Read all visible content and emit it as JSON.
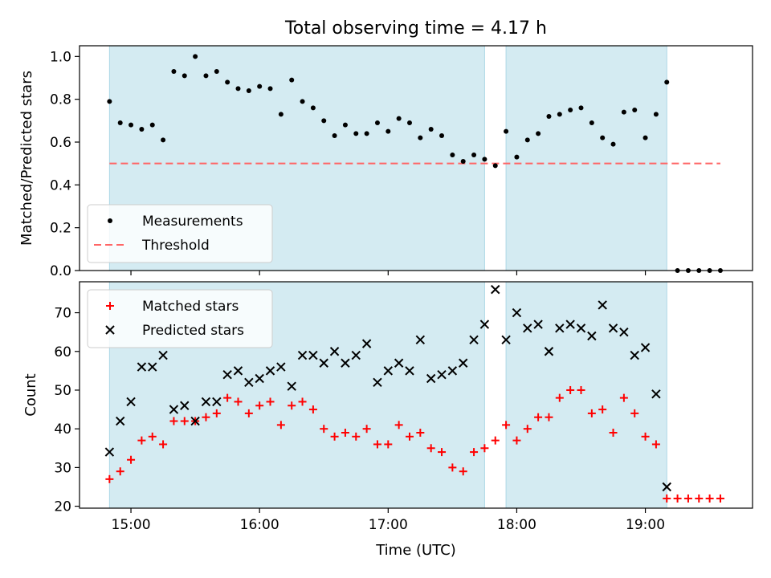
{
  "title": "Total observing time = 4.17 h",
  "xlabel": "Time (UTC)",
  "colors": {
    "shade": "#add8e6",
    "threshold": "#ff6666",
    "matched": "#ff0000",
    "predicted": "#000000",
    "measure": "#000000"
  },
  "chart_data": [
    {
      "type": "scatter",
      "panel": "top",
      "ylabel": "Matched/Predicted stars",
      "ylim": [
        0.0,
        1.05
      ],
      "yticks": [
        "0.0",
        "0.2",
        "0.4",
        "0.6",
        "0.8",
        "1.0"
      ],
      "xlim": [
        "14:36",
        "19:50"
      ],
      "shaded_intervals": [
        [
          "14:50",
          "17:45"
        ],
        [
          "17:55",
          "19:10"
        ]
      ],
      "legend": {
        "placement": "lower-left",
        "entries": [
          "Measurements",
          "Threshold"
        ]
      },
      "threshold": {
        "name": "Threshold",
        "value": 0.5,
        "x_range": [
          "14:50",
          "19:35"
        ],
        "style": "dashed"
      },
      "series": [
        {
          "name": "Measurements",
          "marker": "dot",
          "points": [
            [
              "14:50",
              0.79
            ],
            [
              "14:55",
              0.69
            ],
            [
              "15:00",
              0.68
            ],
            [
              "15:05",
              0.66
            ],
            [
              "15:10",
              0.68
            ],
            [
              "15:15",
              0.61
            ],
            [
              "15:20",
              0.93
            ],
            [
              "15:25",
              0.91
            ],
            [
              "15:30",
              1.0
            ],
            [
              "15:35",
              0.91
            ],
            [
              "15:40",
              0.93
            ],
            [
              "15:45",
              0.88
            ],
            [
              "15:50",
              0.85
            ],
            [
              "15:55",
              0.84
            ],
            [
              "16:00",
              0.86
            ],
            [
              "16:05",
              0.85
            ],
            [
              "16:10",
              0.73
            ],
            [
              "16:15",
              0.89
            ],
            [
              "16:20",
              0.79
            ],
            [
              "16:25",
              0.76
            ],
            [
              "16:30",
              0.7
            ],
            [
              "16:35",
              0.63
            ],
            [
              "16:40",
              0.68
            ],
            [
              "16:45",
              0.64
            ],
            [
              "16:50",
              0.64
            ],
            [
              "16:55",
              0.69
            ],
            [
              "17:00",
              0.65
            ],
            [
              "17:05",
              0.71
            ],
            [
              "17:10",
              0.69
            ],
            [
              "17:15",
              0.62
            ],
            [
              "17:20",
              0.66
            ],
            [
              "17:25",
              0.63
            ],
            [
              "17:30",
              0.54
            ],
            [
              "17:35",
              0.51
            ],
            [
              "17:40",
              0.54
            ],
            [
              "17:45",
              0.52
            ],
            [
              "17:50",
              0.49
            ],
            [
              "17:55",
              0.65
            ],
            [
              "18:00",
              0.53
            ],
            [
              "18:05",
              0.61
            ],
            [
              "18:10",
              0.64
            ],
            [
              "18:15",
              0.72
            ],
            [
              "18:20",
              0.73
            ],
            [
              "18:25",
              0.75
            ],
            [
              "18:30",
              0.76
            ],
            [
              "18:35",
              0.69
            ],
            [
              "18:40",
              0.62
            ],
            [
              "18:45",
              0.59
            ],
            [
              "18:50",
              0.74
            ],
            [
              "18:55",
              0.75
            ],
            [
              "19:00",
              0.62
            ],
            [
              "19:05",
              0.73
            ],
            [
              "19:10",
              0.88
            ],
            [
              "19:15",
              0.0
            ],
            [
              "19:20",
              0.0
            ],
            [
              "19:25",
              0.0
            ],
            [
              "19:30",
              0.0
            ],
            [
              "19:35",
              0.0
            ]
          ]
        }
      ]
    },
    {
      "type": "scatter",
      "panel": "bottom",
      "ylabel": "Count",
      "ylim": [
        19.5,
        78
      ],
      "yticks": [
        "20",
        "30",
        "40",
        "50",
        "60",
        "70"
      ],
      "xlim": [
        "14:36",
        "19:50"
      ],
      "xticks": [
        "15:00",
        "16:00",
        "17:00",
        "18:00",
        "19:00"
      ],
      "shaded_intervals": [
        [
          "14:50",
          "17:45"
        ],
        [
          "17:55",
          "19:10"
        ]
      ],
      "legend": {
        "placement": "top-left",
        "entries": [
          "Matched stars",
          "Predicted stars"
        ]
      },
      "series": [
        {
          "name": "Matched stars",
          "marker": "plus",
          "points": [
            [
              "14:50",
              27
            ],
            [
              "14:55",
              29
            ],
            [
              "15:00",
              32
            ],
            [
              "15:05",
              37
            ],
            [
              "15:10",
              38
            ],
            [
              "15:15",
              36
            ],
            [
              "15:20",
              42
            ],
            [
              "15:25",
              42
            ],
            [
              "15:30",
              42
            ],
            [
              "15:35",
              43
            ],
            [
              "15:40",
              44
            ],
            [
              "15:45",
              48
            ],
            [
              "15:50",
              47
            ],
            [
              "15:55",
              44
            ],
            [
              "16:00",
              46
            ],
            [
              "16:05",
              47
            ],
            [
              "16:10",
              41
            ],
            [
              "16:15",
              46
            ],
            [
              "16:20",
              47
            ],
            [
              "16:25",
              45
            ],
            [
              "16:30",
              40
            ],
            [
              "16:35",
              38
            ],
            [
              "16:40",
              39
            ],
            [
              "16:45",
              38
            ],
            [
              "16:50",
              40
            ],
            [
              "16:55",
              36
            ],
            [
              "17:00",
              36
            ],
            [
              "17:05",
              41
            ],
            [
              "17:10",
              38
            ],
            [
              "17:15",
              39
            ],
            [
              "17:20",
              35
            ],
            [
              "17:25",
              34
            ],
            [
              "17:30",
              30
            ],
            [
              "17:35",
              29
            ],
            [
              "17:40",
              34
            ],
            [
              "17:45",
              35
            ],
            [
              "17:50",
              37
            ],
            [
              "17:55",
              41
            ],
            [
              "18:00",
              37
            ],
            [
              "18:05",
              40
            ],
            [
              "18:10",
              43
            ],
            [
              "18:15",
              43
            ],
            [
              "18:20",
              48
            ],
            [
              "18:25",
              50
            ],
            [
              "18:30",
              50
            ],
            [
              "18:35",
              44
            ],
            [
              "18:40",
              45
            ],
            [
              "18:45",
              39
            ],
            [
              "18:50",
              48
            ],
            [
              "18:55",
              44
            ],
            [
              "19:00",
              38
            ],
            [
              "19:05",
              36
            ],
            [
              "19:10",
              22
            ],
            [
              "19:15",
              22
            ],
            [
              "19:20",
              22
            ],
            [
              "19:25",
              22
            ],
            [
              "19:30",
              22
            ],
            [
              "19:35",
              22
            ]
          ]
        },
        {
          "name": "Predicted stars",
          "marker": "x",
          "points": [
            [
              "14:50",
              34
            ],
            [
              "14:55",
              42
            ],
            [
              "15:00",
              47
            ],
            [
              "15:05",
              56
            ],
            [
              "15:10",
              56
            ],
            [
              "15:15",
              59
            ],
            [
              "15:20",
              45
            ],
            [
              "15:25",
              46
            ],
            [
              "15:30",
              42
            ],
            [
              "15:35",
              47
            ],
            [
              "15:40",
              47
            ],
            [
              "15:45",
              54
            ],
            [
              "15:50",
              55
            ],
            [
              "15:55",
              52
            ],
            [
              "16:00",
              53
            ],
            [
              "16:05",
              55
            ],
            [
              "16:10",
              56
            ],
            [
              "16:15",
              51
            ],
            [
              "16:20",
              59
            ],
            [
              "16:25",
              59
            ],
            [
              "16:30",
              57
            ],
            [
              "16:35",
              60
            ],
            [
              "16:40",
              57
            ],
            [
              "16:45",
              59
            ],
            [
              "16:50",
              62
            ],
            [
              "16:55",
              52
            ],
            [
              "17:00",
              55
            ],
            [
              "17:05",
              57
            ],
            [
              "17:10",
              55
            ],
            [
              "17:15",
              63
            ],
            [
              "17:20",
              53
            ],
            [
              "17:25",
              54
            ],
            [
              "17:30",
              55
            ],
            [
              "17:35",
              57
            ],
            [
              "17:40",
              63
            ],
            [
              "17:45",
              67
            ],
            [
              "17:50",
              76
            ],
            [
              "17:55",
              63
            ],
            [
              "18:00",
              70
            ],
            [
              "18:05",
              66
            ],
            [
              "18:10",
              67
            ],
            [
              "18:15",
              60
            ],
            [
              "18:20",
              66
            ],
            [
              "18:25",
              67
            ],
            [
              "18:30",
              66
            ],
            [
              "18:35",
              64
            ],
            [
              "18:40",
              72
            ],
            [
              "18:45",
              66
            ],
            [
              "18:50",
              65
            ],
            [
              "18:55",
              59
            ],
            [
              "19:00",
              61
            ],
            [
              "19:05",
              49
            ],
            [
              "19:10",
              25
            ]
          ]
        }
      ]
    }
  ]
}
